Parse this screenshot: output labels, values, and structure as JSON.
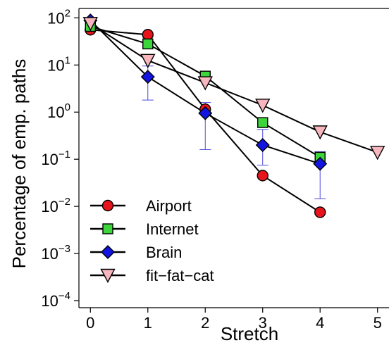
{
  "chart_data": {
    "type": "line",
    "xlabel": "Stretch",
    "ylabel": "Percentage of emp. paths",
    "xlim": [
      -0.2,
      5.2
    ],
    "ylim_log10": [
      -4.15,
      2.2
    ],
    "y_scale": "log",
    "x_ticks": [
      "0",
      "1",
      "2",
      "3",
      "4",
      "5"
    ],
    "y_ticks": [
      {
        "base": "10",
        "exp": "2"
      },
      {
        "base": "10",
        "exp": "1"
      },
      {
        "base": "10",
        "exp": "0"
      },
      {
        "base": "10",
        "exp": "−1"
      },
      {
        "base": "10",
        "exp": "−2"
      },
      {
        "base": "10",
        "exp": "−3"
      },
      {
        "base": "10",
        "exp": "−4"
      }
    ],
    "grid": false,
    "legend_position": "bottom-left",
    "series": [
      {
        "name": "Airport",
        "marker": "circle",
        "color": "#e8141b",
        "x": [
          0,
          1,
          2,
          3,
          4
        ],
        "y": [
          56,
          44,
          1.15,
          0.045,
          0.0075
        ]
      },
      {
        "name": "Internet",
        "marker": "square",
        "color": "#3cd63c",
        "x": [
          0,
          1,
          2,
          3,
          4
        ],
        "y": [
          66,
          28,
          5.8,
          0.6,
          0.11
        ]
      },
      {
        "name": "Brain",
        "marker": "diamond",
        "color": "#1414e0",
        "x": [
          0,
          1,
          2,
          3,
          4
        ],
        "y": [
          88,
          5.6,
          0.95,
          0.2,
          0.08
        ],
        "err_low": [
          null,
          1.8,
          0.16,
          0.075,
          0.0145
        ],
        "err_high": [
          null,
          9.5,
          1.6,
          0.43,
          0.145
        ]
      },
      {
        "name": "fit−fat−cat",
        "marker": "triangle-down",
        "color": "#f7b6be",
        "x": [
          0,
          1,
          2,
          3,
          4,
          5
        ],
        "y": [
          76,
          12.5,
          4.2,
          1.4,
          0.38,
          0.14
        ]
      }
    ]
  }
}
